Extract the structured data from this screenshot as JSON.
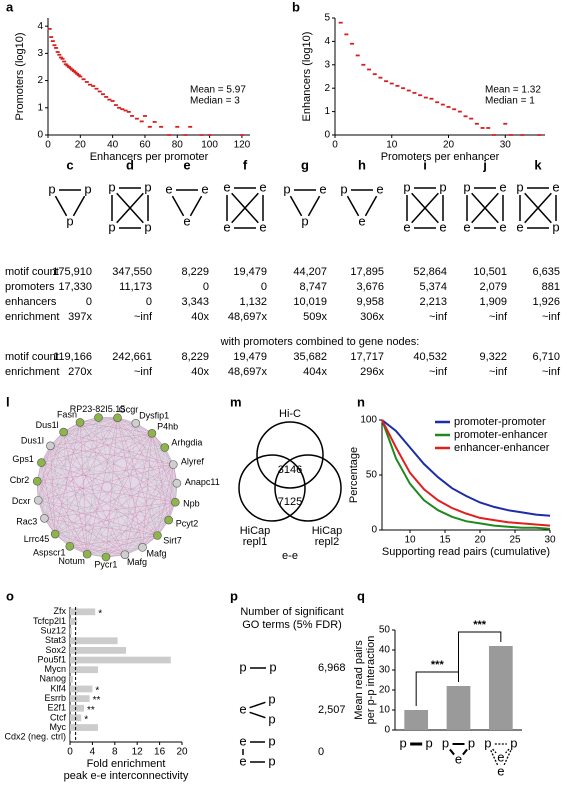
{
  "chart_data": [
    {
      "type": "scatter",
      "panel": "a",
      "xlabel": "Enhancers per promoter",
      "ylabel": "Promoters (log10)",
      "color": "#d62020",
      "x": [
        1,
        2,
        3,
        4,
        5,
        6,
        7,
        8,
        9,
        10,
        11,
        12,
        13,
        14,
        15,
        16,
        17,
        18,
        19,
        20,
        22,
        24,
        26,
        28,
        30,
        32,
        34,
        36,
        38,
        40,
        42,
        44,
        46,
        48,
        50,
        52,
        55,
        58,
        60,
        63,
        66,
        70,
        75,
        80,
        85,
        88,
        95,
        100,
        120
      ],
      "y": [
        3.9,
        3.6,
        3.45,
        3.3,
        3.2,
        3.05,
        2.95,
        2.85,
        2.8,
        2.7,
        2.6,
        2.55,
        2.5,
        2.45,
        2.4,
        2.35,
        2.3,
        2.25,
        2.2,
        2.15,
        2.05,
        1.95,
        1.85,
        1.8,
        1.7,
        1.6,
        1.5,
        1.4,
        1.3,
        1.25,
        1.1,
        1.0,
        0.95,
        0.9,
        0.85,
        0.7,
        0.6,
        0.5,
        0.7,
        0.3,
        0.48,
        0.3,
        0,
        0.3,
        0,
        0.3,
        0,
        0,
        0
      ],
      "xlim": [
        0,
        125
      ],
      "ylim": [
        0,
        4.3
      ],
      "xticks": [
        0,
        20,
        40,
        60,
        80,
        100,
        120
      ],
      "yticks": [
        0,
        1,
        2,
        3,
        4
      ],
      "annotations": [
        "Mean = 5.97",
        "Median = 3"
      ]
    },
    {
      "type": "scatter",
      "panel": "b",
      "xlabel": "Promoters per enhancer",
      "ylabel": "Enhancers (log10)",
      "color": "#d62020",
      "x": [
        1,
        2,
        3,
        4,
        5,
        6,
        7,
        8,
        9,
        10,
        11,
        12,
        13,
        14,
        15,
        16,
        17,
        18,
        19,
        20,
        21,
        22,
        23,
        24,
        25,
        26,
        27,
        28,
        30,
        31,
        33,
        36
      ],
      "y": [
        4.8,
        4.3,
        3.9,
        3.4,
        3.0,
        2.8,
        2.6,
        2.45,
        2.3,
        2.2,
        2.1,
        2.0,
        1.9,
        1.8,
        1.7,
        1.6,
        1.55,
        1.4,
        1.3,
        1.2,
        1.1,
        1.0,
        0.8,
        0.7,
        0.48,
        0.3,
        0.3,
        0,
        0.48,
        0,
        0,
        0
      ],
      "xlim": [
        0,
        37
      ],
      "ylim": [
        0,
        5
      ],
      "xticks": [
        0,
        10,
        20,
        30
      ],
      "yticks": [
        0,
        1,
        2,
        3,
        4,
        5
      ],
      "annotations": [
        "Mean = 1.32",
        "Median = 1"
      ]
    },
    {
      "type": "line",
      "panel": "n",
      "xlabel": "Supporting read pairs (cumulative)",
      "ylabel": "Percentage",
      "x": [
        6,
        8,
        10,
        12,
        14,
        16,
        18,
        20,
        22,
        24,
        26,
        28,
        30
      ],
      "series": [
        {
          "name": "promoter-promoter",
          "color": "#1f2ca8",
          "values": [
            100,
            90,
            75,
            60,
            48,
            38,
            31,
            25,
            21,
            18,
            16,
            14,
            13
          ]
        },
        {
          "name": "promoter-enhancer",
          "color": "#1e8a1e",
          "values": [
            100,
            65,
            42,
            27,
            18,
            12,
            8,
            6,
            4,
            3,
            2,
            2,
            1
          ]
        },
        {
          "name": "enhancer-enhancer",
          "color": "#e02020",
          "values": [
            100,
            75,
            52,
            37,
            27,
            20,
            15,
            11,
            9,
            7,
            6,
            5,
            4
          ]
        }
      ],
      "xlim": [
        6,
        30
      ],
      "ylim": [
        0,
        100
      ],
      "xticks": [
        10,
        15,
        20,
        25,
        30
      ],
      "yticks": [
        0,
        50,
        100
      ],
      "legend": "upper right"
    },
    {
      "type": "bar",
      "orientation": "horizontal",
      "panel": "o",
      "xlabel": [
        "Fold enrichment",
        "peak e-e interconnectivity"
      ],
      "categories": [
        "Zfx",
        "Tcfcp2l1",
        "Suz12",
        "Stat3",
        "Sox2",
        "Pou5f1",
        "Mycn",
        "Nanog",
        "Klf4",
        "Esrrb",
        "E2f1",
        "Ctcf",
        "Myc",
        "Cdx2 (neg. ctrl)"
      ],
      "values": [
        4.5,
        1.2,
        0.3,
        8.5,
        10,
        18,
        5,
        0.5,
        4,
        3.5,
        2.5,
        2,
        5,
        0.2
      ],
      "stars": [
        "*",
        null,
        null,
        null,
        null,
        null,
        null,
        null,
        "*",
        "**",
        "**",
        "*",
        null,
        null
      ],
      "color": "#cccccc",
      "reference_line": 1,
      "xlim": [
        0,
        20
      ],
      "xticks": [
        0,
        4,
        8,
        12,
        16,
        20
      ]
    },
    {
      "type": "bar",
      "panel": "q",
      "ylabel": [
        "Mean read pairs",
        "per p-p interaction"
      ],
      "category_icons": [
        [
          "p",
          "p"
        ],
        [
          "p",
          "e",
          "p"
        ],
        [
          "p",
          "p",
          "e",
          "e"
        ]
      ],
      "values": [
        10,
        22,
        42
      ],
      "significance": [
        "***",
        "***"
      ],
      "color": "#9a9a9a",
      "ylim": [
        0,
        50
      ],
      "yticks": [
        0,
        10,
        20,
        30,
        40,
        50
      ]
    }
  ],
  "node_colors": {
    "p": "#2aa7d8",
    "e": "#d0343c"
  },
  "motifs": {
    "columns": [
      {
        "label": "c",
        "nodes": [
          "p",
          "p",
          "p"
        ]
      },
      {
        "label": "d",
        "nodes": [
          "p",
          "p",
          "p",
          "p"
        ]
      },
      {
        "label": "e",
        "nodes": [
          "e",
          "e",
          "e"
        ]
      },
      {
        "label": "f",
        "nodes": [
          "e",
          "e",
          "e",
          "e"
        ]
      },
      {
        "label": "g",
        "nodes": [
          "p",
          "e",
          "p"
        ]
      },
      {
        "label": "h",
        "nodes": [
          "p",
          "e",
          "e"
        ]
      },
      {
        "label": "i",
        "nodes": [
          "p",
          "p",
          "e",
          "e"
        ]
      },
      {
        "label": "j",
        "nodes": [
          "p",
          "e",
          "e",
          "e"
        ]
      },
      {
        "label": "k",
        "nodes": [
          "p",
          "e",
          "e",
          "p"
        ]
      }
    ],
    "rows": [
      {
        "label": "motif count",
        "color": "#000000",
        "values": [
          "175,910",
          "347,550",
          "8,229",
          "19,479",
          "44,207",
          "17,895",
          "52,864",
          "10,501",
          "6,635"
        ]
      },
      {
        "label": "promoters",
        "color": "#7f93b8",
        "values": [
          "17,330",
          "11,173",
          "0",
          "0",
          "8,747",
          "3,676",
          "5,374",
          "2,079",
          "881"
        ]
      },
      {
        "label": "enhancers",
        "color": "#8a8a8a",
        "values": [
          "0",
          "0",
          "3,343",
          "1,132",
          "10,019",
          "9,958",
          "2,213",
          "1,909",
          "1,926"
        ]
      },
      {
        "label": "enrichment",
        "color": "#000000",
        "values": [
          "397x",
          "~inf",
          "40x",
          "48,697x",
          "509x",
          "306x",
          "~inf",
          "~inf",
          "~inf"
        ]
      }
    ],
    "note": "with promoters combined to gene nodes:",
    "gene_rows": [
      {
        "label": "motif count",
        "color": "#8a8a8a",
        "values": [
          "119,166",
          "242,661",
          "8,229",
          "19,479",
          "35,682",
          "17,717",
          "40,532",
          "9,322",
          "6,710"
        ]
      },
      {
        "label": "enrichment",
        "color": "#8a8a8a",
        "values": [
          "270x",
          "~inf",
          "40x",
          "48,697x",
          "404x",
          "296x",
          "~inf",
          "~inf",
          "~inf"
        ]
      }
    ]
  },
  "network": {
    "panel": "l",
    "nodes": [
      {
        "name": "RP23-82I5.15",
        "color": "#8db54a"
      },
      {
        "name": "Gcgr",
        "color": "#8db54a"
      },
      {
        "name": "Dysfip1",
        "color": "#cfcfcf"
      },
      {
        "name": "P4hb",
        "color": "#8db54a"
      },
      {
        "name": "Arhgdia",
        "color": "#8db54a"
      },
      {
        "name": "Alyref",
        "color": "#cfcfcf"
      },
      {
        "name": "Anapc11",
        "color": "#cfcfcf"
      },
      {
        "name": "Npb",
        "color": "#8db54a"
      },
      {
        "name": "Pcyt2",
        "color": "#8db54a"
      },
      {
        "name": "Sirt7",
        "color": "#8db54a"
      },
      {
        "name": "Mafg",
        "color": "#cfcfcf"
      },
      {
        "name": "Mafg",
        "color": "#cfcfcf"
      },
      {
        "name": "Pycr1",
        "color": "#8db54a"
      },
      {
        "name": "Notum",
        "color": "#8db54a"
      },
      {
        "name": "Aspscr1",
        "color": "#8db54a"
      },
      {
        "name": "Lrrc45",
        "color": "#8db54a"
      },
      {
        "name": "Rac3",
        "color": "#cfcfcf"
      },
      {
        "name": "Dcxr",
        "color": "#cfcfcf"
      },
      {
        "name": "Cbr2",
        "color": "#8db54a"
      },
      {
        "name": "Gps1",
        "color": "#8db54a"
      },
      {
        "name": "Dus1l",
        "color": "#cfcfcf"
      },
      {
        "name": "Dus1l",
        "color": "#8db54a"
      },
      {
        "name": "Fasn",
        "color": "#8db54a"
      }
    ]
  },
  "venn": {
    "panel": "m",
    "top": "Hi-C",
    "left": [
      "HiCap",
      "repl1"
    ],
    "right": [
      "HiCap",
      "repl2"
    ],
    "center": 3146,
    "lower": 7125,
    "caption": "e-e"
  },
  "go_terms": {
    "panel": "p",
    "title": [
      "Number of significant",
      "GO terms (5% FDR)"
    ],
    "rows": [
      {
        "icon": [
          "p",
          "p"
        ],
        "value": "6,968"
      },
      {
        "icon": [
          "e",
          "p",
          "p"
        ],
        "value": "2,507"
      },
      {
        "icon": [
          "e",
          "p",
          "e",
          "p"
        ],
        "value": "0"
      }
    ]
  }
}
